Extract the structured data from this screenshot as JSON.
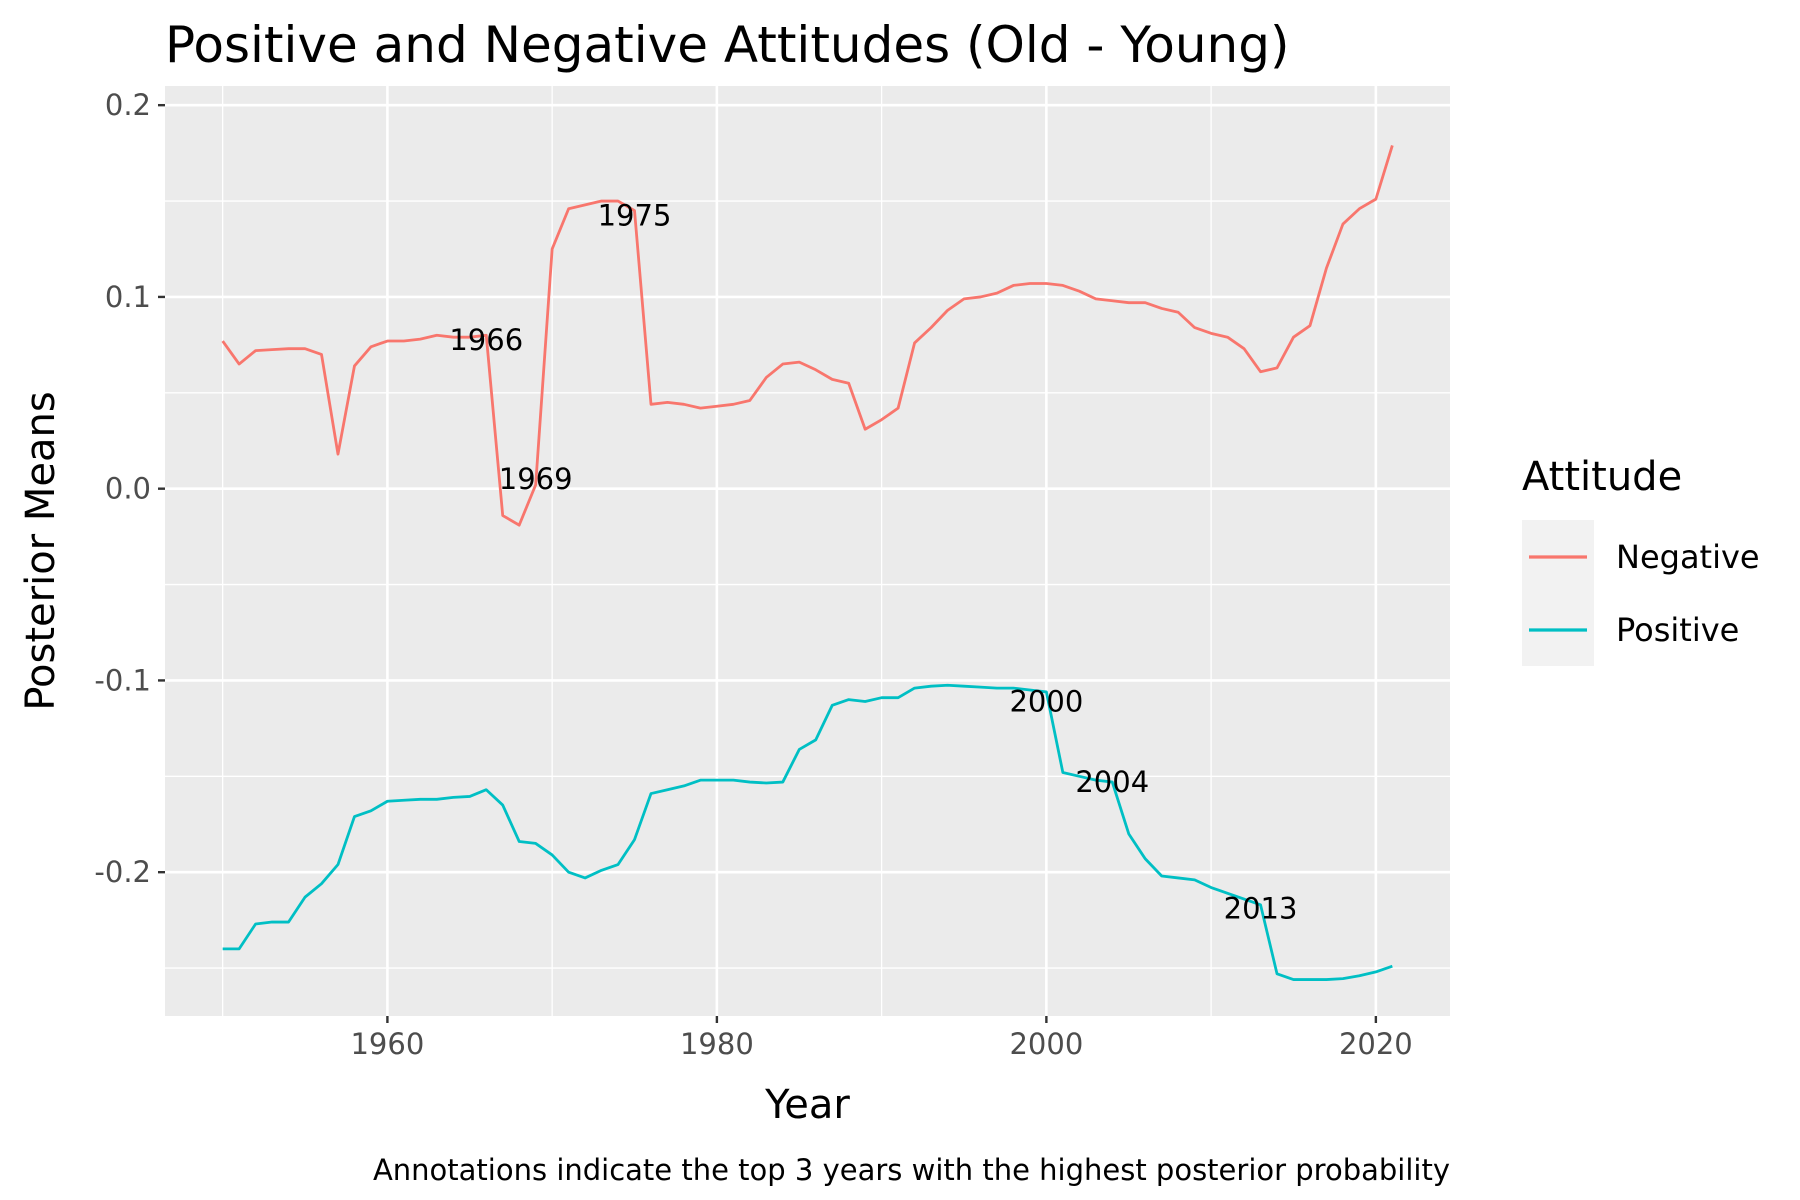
{
  "chart_data": {
    "type": "line",
    "title": "Positive and Negative Attitudes (Old - Young)",
    "xlabel": "Year",
    "ylabel": "Posterior Means",
    "caption": "Annotations indicate the top 3 years with the highest posterior probability",
    "xlim": [
      1946.5,
      2024.5
    ],
    "ylim": [
      -0.275,
      0.21
    ],
    "x_ticks": [
      1960,
      1980,
      2000,
      2020
    ],
    "x_tick_labels": [
      "1960",
      "1980",
      "2000",
      "2020"
    ],
    "y_ticks": [
      0.2,
      0.1,
      0.0,
      -0.1,
      -0.2
    ],
    "y_tick_labels": [
      "0.2",
      "0.1",
      "0.0",
      "-0.1",
      "-0.2"
    ],
    "grid": true,
    "legend": {
      "title": "Attitude",
      "position": "right"
    },
    "x": [
      1950,
      1951,
      1952,
      1953,
      1954,
      1955,
      1956,
      1957,
      1958,
      1959,
      1960,
      1961,
      1962,
      1963,
      1964,
      1965,
      1966,
      1967,
      1968,
      1969,
      1970,
      1971,
      1972,
      1973,
      1974,
      1975,
      1976,
      1977,
      1978,
      1979,
      1980,
      1981,
      1982,
      1983,
      1984,
      1985,
      1986,
      1987,
      1988,
      1989,
      1990,
      1991,
      1992,
      1993,
      1994,
      1995,
      1996,
      1997,
      1998,
      1999,
      2000,
      2001,
      2002,
      2003,
      2004,
      2005,
      2006,
      2007,
      2008,
      2009,
      2010,
      2011,
      2012,
      2013,
      2014,
      2015,
      2016,
      2017,
      2018,
      2019,
      2020,
      2021
    ],
    "series": [
      {
        "name": "Negative",
        "color": "#F8766D",
        "values": [
          0.077,
          0.065,
          0.072,
          0.0725,
          0.073,
          0.073,
          0.07,
          0.018,
          0.064,
          0.074,
          0.077,
          0.077,
          0.078,
          0.08,
          0.079,
          0.079,
          0.08,
          -0.014,
          -0.019,
          0.002,
          0.125,
          0.146,
          0.148,
          0.15,
          0.15,
          0.145,
          0.044,
          0.045,
          0.044,
          0.042,
          0.043,
          0.044,
          0.046,
          0.058,
          0.065,
          0.066,
          0.062,
          0.057,
          0.055,
          0.031,
          0.036,
          0.042,
          0.076,
          0.084,
          0.093,
          0.099,
          0.1,
          0.102,
          0.106,
          0.107,
          0.107,
          0.106,
          0.103,
          0.099,
          0.098,
          0.097,
          0.097,
          0.094,
          0.092,
          0.084,
          0.081,
          0.079,
          0.073,
          0.061,
          0.063,
          0.079,
          0.085,
          0.115,
          0.138,
          0.146,
          0.151,
          0.179
        ]
      },
      {
        "name": "Positive",
        "color": "#00BFC4",
        "values": [
          -0.24,
          -0.24,
          -0.227,
          -0.226,
          -0.226,
          -0.213,
          -0.206,
          -0.196,
          -0.171,
          -0.168,
          -0.163,
          -0.1625,
          -0.162,
          -0.162,
          -0.161,
          -0.1605,
          -0.157,
          -0.165,
          -0.184,
          -0.185,
          -0.191,
          -0.2,
          -0.203,
          -0.199,
          -0.196,
          -0.183,
          -0.159,
          -0.157,
          -0.155,
          -0.152,
          -0.152,
          -0.152,
          -0.153,
          -0.1535,
          -0.153,
          -0.136,
          -0.131,
          -0.113,
          -0.11,
          -0.111,
          -0.109,
          -0.109,
          -0.104,
          -0.103,
          -0.1025,
          -0.103,
          -0.1035,
          -0.104,
          -0.104,
          -0.105,
          -0.106,
          -0.148,
          -0.15,
          -0.152,
          -0.153,
          -0.18,
          -0.193,
          -0.202,
          -0.203,
          -0.204,
          -0.208,
          -0.211,
          -0.214,
          -0.217,
          -0.253,
          -0.256,
          -0.256,
          -0.256,
          -0.2555,
          -0.254,
          -0.252,
          -0.249
        ]
      }
    ],
    "annotations": [
      {
        "label": "1975",
        "x": 1975,
        "y": 0.1425
      },
      {
        "label": "1966",
        "x": 1966,
        "y": 0.0775
      },
      {
        "label": "1969",
        "x": 1969,
        "y": 0.005
      },
      {
        "label": "2000",
        "x": 2000,
        "y": -0.111
      },
      {
        "label": "2004",
        "x": 2004,
        "y": -0.153
      },
      {
        "label": "2013",
        "x": 2013,
        "y": -0.219
      }
    ]
  }
}
